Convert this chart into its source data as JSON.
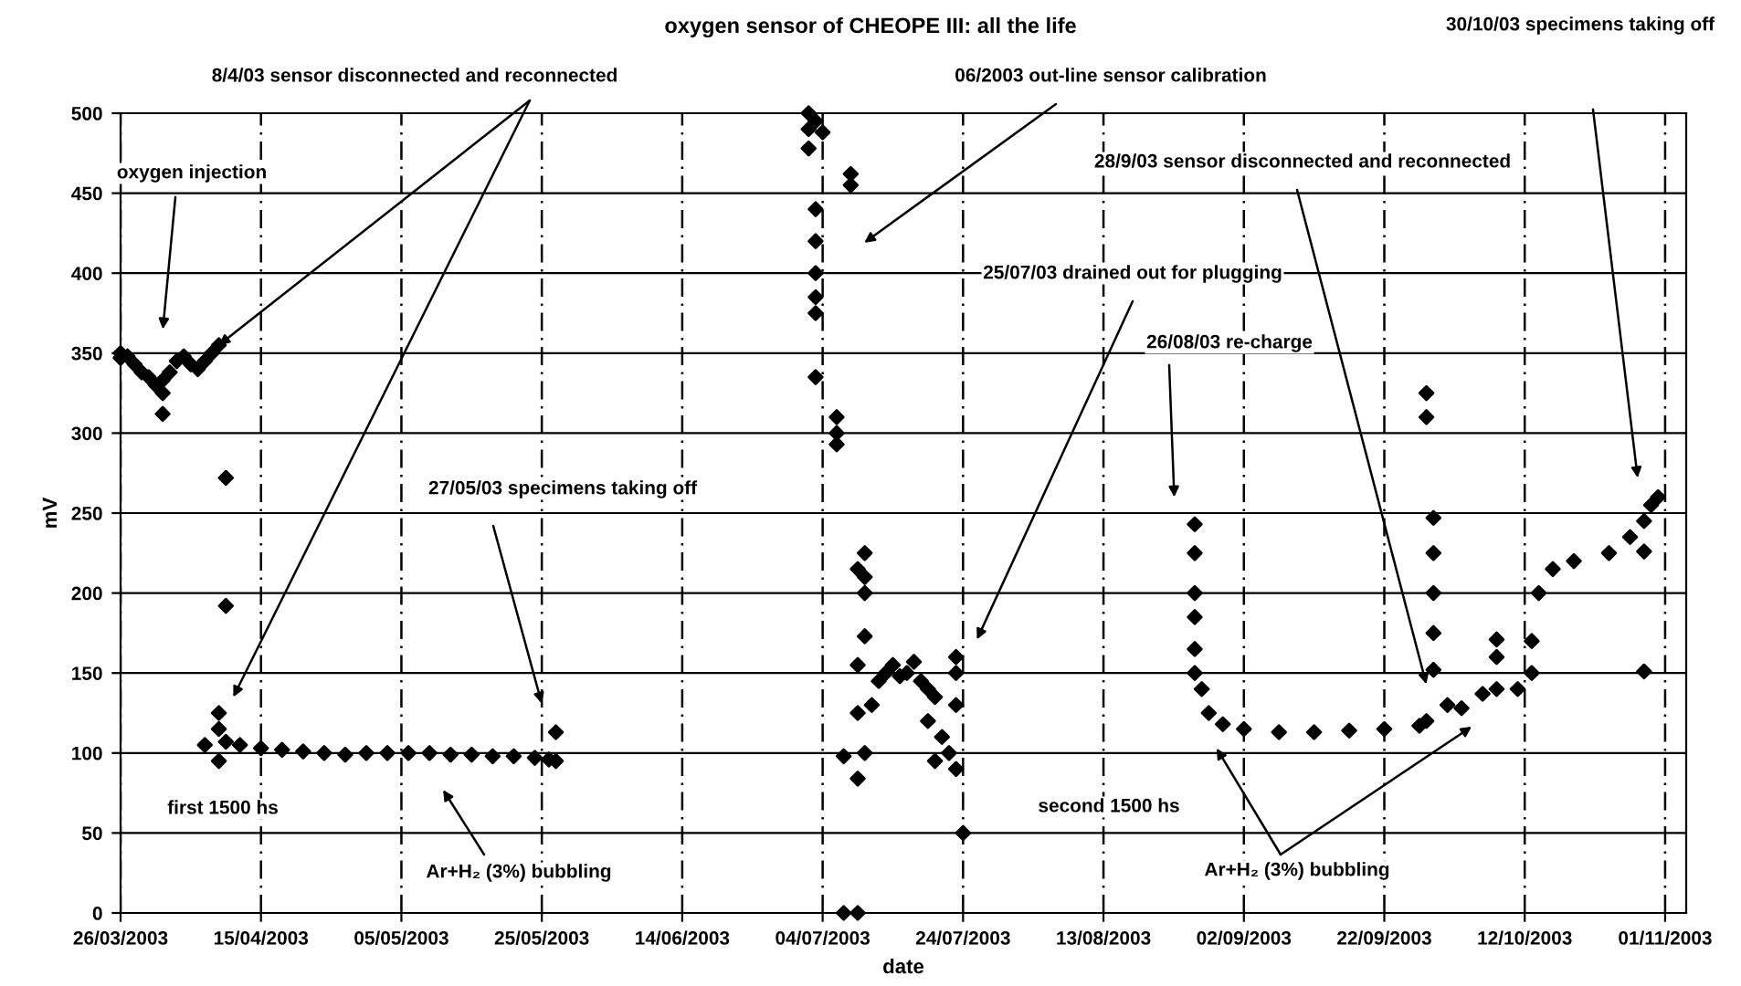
{
  "chart_data": {
    "type": "scatter",
    "title": "oxygen sensor of CHEOPE III: all the life",
    "xlabel": "date",
    "ylabel": "mV",
    "xlim": [
      "2003-03-26",
      "2003-11-04"
    ],
    "xticks": [
      {
        "value": "2003-03-26",
        "label": "26/03/2003"
      },
      {
        "value": "2003-04-15",
        "label": "15/04/2003"
      },
      {
        "value": "2003-05-05",
        "label": "05/05/2003"
      },
      {
        "value": "2003-05-25",
        "label": "25/05/2003"
      },
      {
        "value": "2003-06-14",
        "label": "14/06/2003"
      },
      {
        "value": "2003-07-04",
        "label": "04/07/2003"
      },
      {
        "value": "2003-07-24",
        "label": "24/07/2003"
      },
      {
        "value": "2003-08-13",
        "label": "13/08/2003"
      },
      {
        "value": "2003-09-02",
        "label": "02/09/2003"
      },
      {
        "value": "2003-09-22",
        "label": "22/09/2003"
      },
      {
        "value": "2003-10-12",
        "label": "12/10/2003"
      },
      {
        "value": "2003-11-01",
        "label": "01/11/2003"
      }
    ],
    "ylim": [
      0,
      500
    ],
    "yticks": [
      0,
      50,
      100,
      150,
      200,
      250,
      300,
      350,
      400,
      450,
      500
    ],
    "grid": true,
    "marker": "diamond",
    "series": [
      {
        "color": "#000000",
        "x": [
          "2003-03-26",
          "2003-03-26",
          "2003-03-27",
          "2003-03-28",
          "2003-03-29",
          "2003-03-30",
          "2003-03-31",
          "2003-04-01",
          "2003-04-01",
          "2003-04-01",
          "2003-04-02",
          "2003-04-03",
          "2003-04-04",
          "2003-04-05",
          "2003-04-06",
          "2003-04-07",
          "2003-04-08",
          "2003-04-09",
          "2003-04-07",
          "2003-04-09",
          "2003-04-09",
          "2003-04-09",
          "2003-04-10",
          "2003-04-10",
          "2003-04-10",
          "2003-04-12",
          "2003-04-15",
          "2003-04-18",
          "2003-04-21",
          "2003-04-24",
          "2003-04-27",
          "2003-04-30",
          "2003-05-03",
          "2003-05-06",
          "2003-05-09",
          "2003-05-12",
          "2003-05-15",
          "2003-05-18",
          "2003-05-21",
          "2003-05-24",
          "2003-05-26",
          "2003-05-27",
          "2003-05-27",
          "2003-07-02",
          "2003-07-02",
          "2003-07-02",
          "2003-07-03",
          "2003-07-04",
          "2003-07-03",
          "2003-07-03",
          "2003-07-03",
          "2003-07-03",
          "2003-07-03",
          "2003-07-03",
          "2003-07-06",
          "2003-07-06",
          "2003-07-06",
          "2003-07-07",
          "2003-07-07",
          "2003-07-08",
          "2003-07-08",
          "2003-07-09",
          "2003-07-09",
          "2003-07-09",
          "2003-07-09",
          "2003-07-09",
          "2003-07-10",
          "2003-07-10",
          "2003-07-10",
          "2003-07-10",
          "2003-07-10",
          "2003-07-11",
          "2003-07-12",
          "2003-07-13",
          "2003-07-14",
          "2003-07-15",
          "2003-07-16",
          "2003-07-17",
          "2003-07-18",
          "2003-07-19",
          "2003-07-19",
          "2003-07-20",
          "2003-07-20",
          "2003-07-21",
          "2003-07-22",
          "2003-07-23",
          "2003-07-23",
          "2003-07-23",
          "2003-07-23",
          "2003-07-24",
          "2003-08-26",
          "2003-08-26",
          "2003-08-26",
          "2003-08-26",
          "2003-08-26",
          "2003-08-26",
          "2003-08-27",
          "2003-08-28",
          "2003-08-30",
          "2003-09-02",
          "2003-09-07",
          "2003-09-12",
          "2003-09-17",
          "2003-09-22",
          "2003-09-27",
          "2003-09-28",
          "2003-09-28",
          "2003-09-28",
          "2003-09-29",
          "2003-09-29",
          "2003-09-29",
          "2003-09-29",
          "2003-09-29",
          "2003-10-01",
          "2003-10-03",
          "2003-10-06",
          "2003-10-08",
          "2003-10-08",
          "2003-10-08",
          "2003-10-11",
          "2003-10-13",
          "2003-10-13",
          "2003-10-14",
          "2003-10-16",
          "2003-10-19",
          "2003-10-24",
          "2003-10-27",
          "2003-10-29",
          "2003-10-30",
          "2003-10-31",
          "2003-10-29",
          "2003-10-29"
        ],
        "values": [
          350,
          347,
          348,
          343,
          338,
          335,
          330,
          325,
          312,
          333,
          338,
          345,
          348,
          343,
          340,
          345,
          350,
          355,
          105,
          125,
          115,
          95,
          272,
          192,
          107,
          105,
          103,
          102,
          101,
          100,
          99,
          100,
          100,
          100,
          100,
          99,
          99,
          98,
          98,
          97,
          96,
          95,
          113,
          500,
          490,
          478,
          495,
          488,
          440,
          420,
          400,
          385,
          375,
          335,
          310,
          300,
          293,
          0,
          98,
          462,
          455,
          0,
          84,
          155,
          125,
          215,
          210,
          225,
          200,
          173,
          100,
          130,
          145,
          150,
          155,
          148,
          150,
          157,
          145,
          140,
          120,
          135,
          95,
          110,
          100,
          160,
          150,
          130,
          90,
          50,
          243,
          225,
          200,
          185,
          165,
          150,
          140,
          125,
          118,
          115,
          113,
          113,
          114,
          115,
          117,
          120,
          325,
          310,
          247,
          225,
          200,
          175,
          152,
          130,
          128,
          137,
          171,
          160,
          140,
          140,
          150,
          170,
          200,
          215,
          220,
          225,
          235,
          245,
          255,
          260,
          226,
          151
        ]
      }
    ],
    "annotations": [
      "oxygen injection",
      {
        "text": "8/4/03 sensor disconnected and reconnected",
        "x": "2003-04-09",
        "y": 355
      },
      "06/2003 out-line sensor calibration",
      "30/10/03 specimens taking off",
      "28/9/03 sensor disconnected and reconnected",
      "25/07/03 drained out for plugging",
      "26/08/03 re-charge",
      "27/05/03 specimens taking off",
      "first 1500 hs",
      "Ar+H₂ (3%) bubbling",
      "second 1500 hs",
      "Ar+H₂ (3%) bubbling"
    ]
  }
}
